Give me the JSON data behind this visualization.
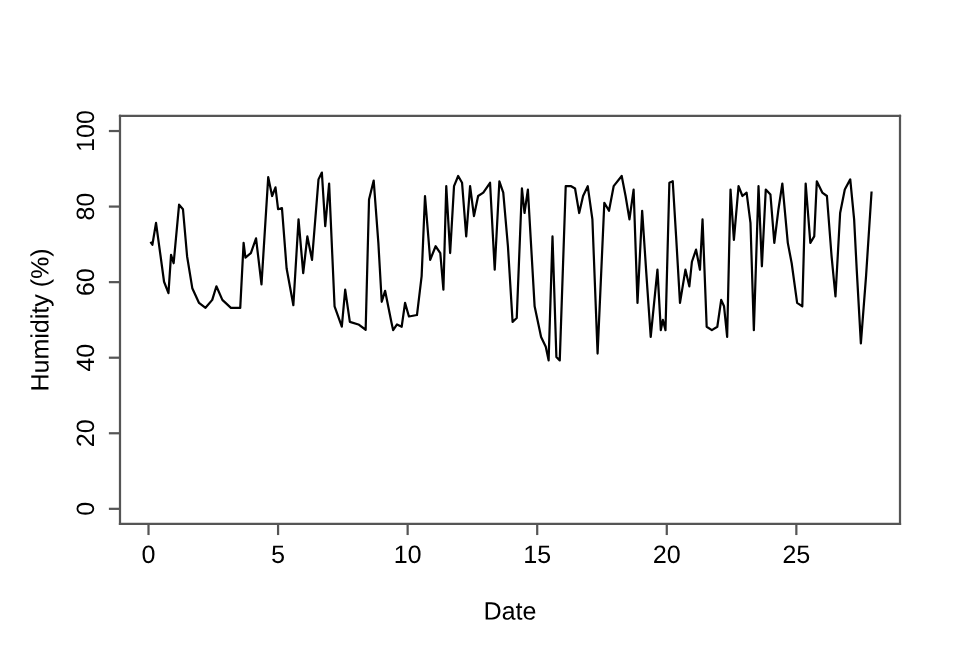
{
  "chart_data": {
    "type": "line",
    "xlabel": "Date",
    "ylabel": "Humidity (%)",
    "xlim": [
      -1.1,
      29.0
    ],
    "ylim": [
      -4,
      104
    ],
    "xticks": [
      0,
      5,
      10,
      15,
      20,
      25
    ],
    "yticks": [
      0,
      20,
      40,
      60,
      80,
      100
    ],
    "grid": false,
    "marker": "none",
    "line_style": "solid",
    "series": [
      {
        "color": "#000000",
        "x": [
          0.1,
          0.15,
          0.29,
          0.45,
          0.6,
          0.77,
          0.87,
          0.97,
          1.18,
          1.33,
          1.49,
          1.69,
          1.95,
          2.2,
          2.46,
          2.62,
          2.85,
          3.18,
          3.54,
          3.67,
          3.74,
          3.95,
          4.15,
          4.36,
          4.62,
          4.77,
          4.9,
          5.0,
          5.15,
          5.33,
          5.59,
          5.79,
          5.97,
          6.13,
          6.31,
          6.56,
          6.69,
          6.82,
          6.97,
          7.18,
          7.46,
          7.59,
          7.77,
          8.1,
          8.38,
          8.51,
          8.69,
          8.87,
          9.0,
          9.13,
          9.38,
          9.44,
          9.59,
          9.77,
          9.9,
          10.05,
          10.36,
          10.54,
          10.67,
          10.87,
          11.08,
          11.26,
          11.38,
          11.49,
          11.64,
          11.79,
          11.95,
          12.1,
          12.26,
          12.41,
          12.56,
          12.72,
          12.92,
          13.18,
          13.36,
          13.54,
          13.69,
          13.87,
          14.05,
          14.21,
          14.41,
          14.51,
          14.64,
          14.9,
          15.15,
          15.33,
          15.44,
          15.59,
          15.74,
          15.87,
          16.1,
          16.31,
          16.46,
          16.62,
          16.77,
          16.95,
          17.13,
          17.33,
          17.59,
          17.77,
          17.95,
          18.26,
          18.41,
          18.56,
          18.72,
          18.87,
          19.05,
          19.21,
          19.38,
          19.64,
          19.77,
          19.85,
          19.95,
          20.1,
          20.23,
          20.36,
          20.51,
          20.72,
          20.87,
          20.97,
          21.13,
          21.28,
          21.38,
          21.54,
          21.74,
          21.95,
          22.1,
          22.21,
          22.33,
          22.46,
          22.59,
          22.77,
          22.92,
          23.08,
          23.23,
          23.36,
          23.54,
          23.67,
          23.82,
          24.0,
          24.15,
          24.31,
          24.46,
          24.67,
          24.82,
          25.03,
          25.23,
          25.36,
          25.54,
          25.69,
          25.79,
          26.0,
          26.18,
          26.36,
          26.51,
          26.69,
          26.87,
          27.08,
          27.23,
          27.33,
          27.49,
          27.69,
          27.9
        ],
        "values": [
          70.4,
          69.9,
          75.7,
          67.7,
          60.1,
          57.1,
          67.2,
          65,
          80.5,
          79.3,
          66.8,
          58.4,
          54.5,
          53.2,
          55.3,
          58.9,
          55.3,
          53.2,
          53.2,
          70.4,
          66.5,
          67.7,
          71.6,
          59.4,
          87.8,
          82.8,
          85.1,
          79.3,
          79.6,
          63.6,
          53.9,
          76.6,
          62.4,
          72.1,
          65.9,
          87.2,
          89,
          74.8,
          86.1,
          53.6,
          48.2,
          58,
          49.5,
          48.8,
          47.4,
          81.9,
          86.9,
          70.4,
          54.8,
          57.7,
          49.2,
          47.3,
          48.8,
          48.2,
          54.5,
          50.9,
          51.3,
          61.6,
          82.8,
          65.9,
          69.5,
          67.7,
          58,
          85.4,
          67.7,
          85.4,
          88.1,
          86.3,
          72.1,
          85.4,
          77.5,
          82.8,
          83.7,
          86.3,
          63.3,
          86.7,
          83.7,
          69.5,
          49.5,
          50.5,
          84.8,
          78.3,
          84.5,
          53.6,
          45.5,
          42.9,
          39.3,
          72.1,
          40.2,
          39.3,
          85.4,
          85.4,
          84.8,
          78.3,
          82.8,
          85.4,
          76.6,
          41.1,
          81,
          78.9,
          85.4,
          88.1,
          82.8,
          76.6,
          84.5,
          54.5,
          78.9,
          62.4,
          45.5,
          63.3,
          47.3,
          50,
          47.3,
          86.3,
          86.7,
          72.1,
          54.5,
          63.3,
          58.9,
          65.4,
          68.6,
          63.3,
          76.6,
          48.2,
          47.3,
          48.2,
          55.3,
          53.6,
          45.5,
          84.5,
          71.2,
          85.4,
          82.8,
          83.7,
          75.7,
          47.3,
          85.4,
          64.2,
          84.5,
          83.2,
          70.4,
          79.3,
          86.1,
          70.4,
          65,
          54.5,
          53.6,
          86.1,
          70.4,
          72.1,
          86.7,
          83.7,
          82.8,
          66.8,
          56.2,
          78.3,
          84.5,
          87.2,
          76.6,
          63.3,
          43.8,
          61.6,
          83.7
        ]
      }
    ]
  }
}
